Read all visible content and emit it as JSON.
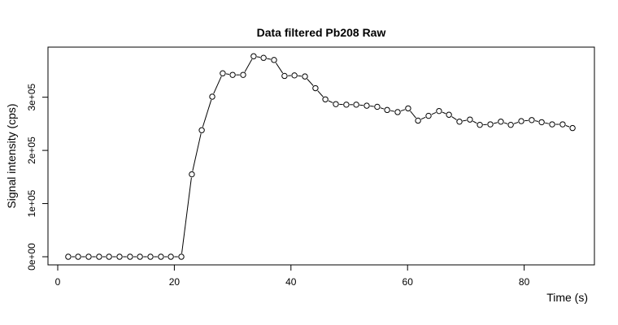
{
  "chart_data": {
    "type": "line",
    "title": "Data filtered Pb208 Raw",
    "xlabel": "Time (s)",
    "ylabel": "Signal intensity (cps)",
    "xlim": [
      0,
      90
    ],
    "ylim": [
      0,
      380000
    ],
    "x_ticks": [
      0,
      20,
      40,
      60,
      80
    ],
    "y_ticks": [
      0,
      100000,
      200000,
      300000
    ],
    "y_tick_labels": [
      "0e+00",
      "1e+05",
      "2e+05",
      "3e+05"
    ],
    "series": [
      {
        "marker": "open-circle",
        "line": true,
        "x": [
          1.8,
          3.5,
          5.3,
          7.1,
          8.8,
          10.6,
          12.4,
          14.1,
          15.9,
          17.7,
          19.4,
          21.2,
          23.0,
          24.7,
          26.5,
          28.3,
          30.0,
          31.8,
          33.6,
          35.3,
          37.1,
          38.9,
          40.6,
          42.4,
          44.2,
          45.9,
          47.7,
          49.5,
          51.2,
          53.0,
          54.8,
          56.5,
          58.3,
          60.1,
          61.8,
          63.6,
          65.4,
          67.1,
          68.9,
          70.7,
          72.4,
          74.2,
          76.0,
          77.7,
          79.5,
          81.3,
          83.0,
          84.8,
          86.6,
          88.3
        ],
        "y": [
          0,
          0,
          0,
          0,
          0,
          0,
          0,
          0,
          0,
          0,
          0,
          0,
          155000,
          238000,
          301000,
          345000,
          342000,
          342000,
          377000,
          374000,
          370000,
          340000,
          341000,
          339000,
          317000,
          296000,
          287000,
          286000,
          286000,
          284000,
          282000,
          276000,
          272000,
          279000,
          256000,
          265000,
          274000,
          267000,
          254000,
          258000,
          248000,
          249000,
          254000,
          248000,
          255000,
          257000,
          253000,
          249000,
          249000,
          242000
        ]
      }
    ]
  }
}
